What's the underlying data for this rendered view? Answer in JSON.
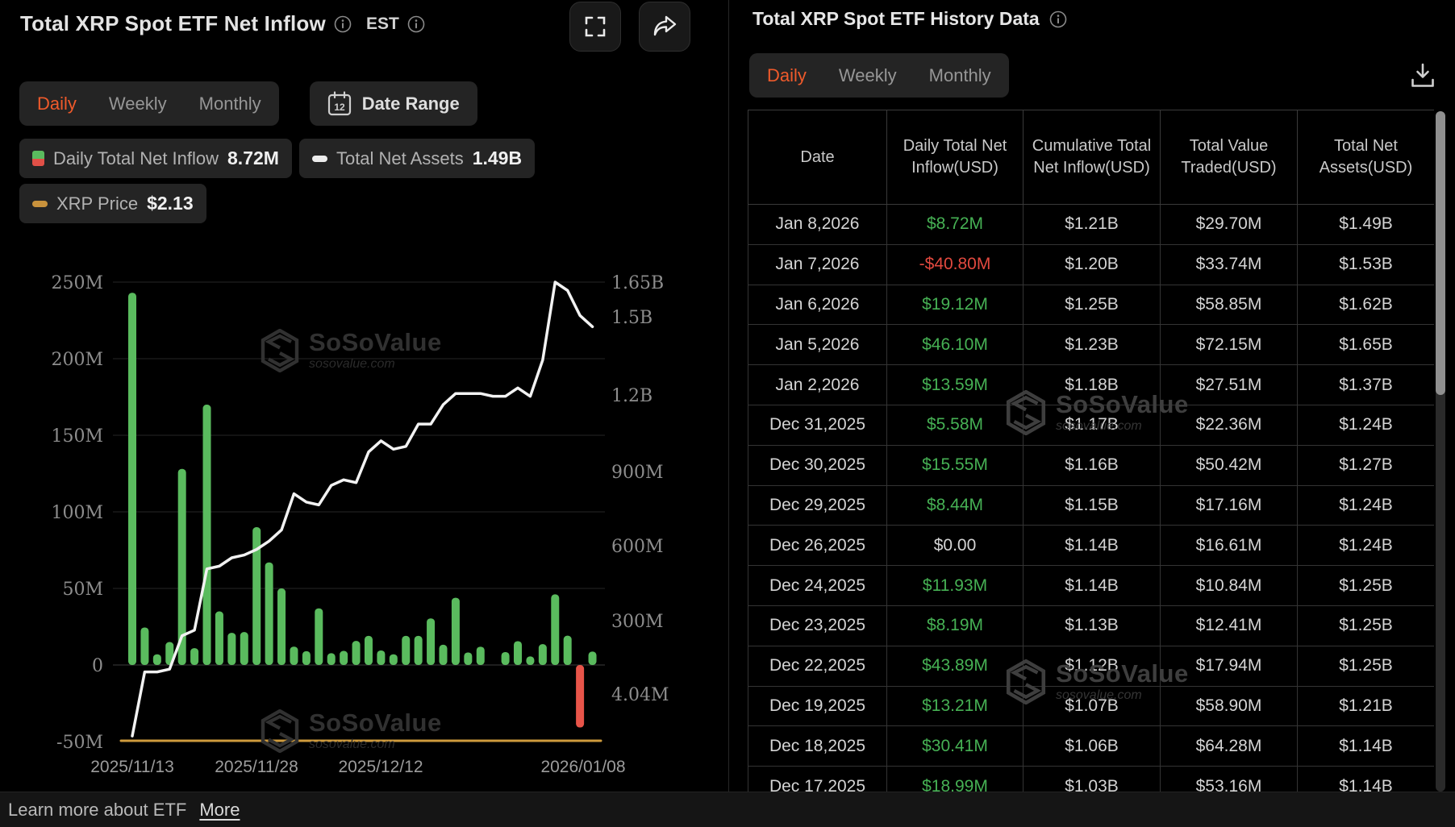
{
  "left_panel": {
    "title": "Total XRP Spot ETF Net Inflow",
    "timezone": "EST",
    "tabs": {
      "daily": "Daily",
      "weekly": "Weekly",
      "monthly": "Monthly",
      "active": "Daily"
    },
    "date_range_label": "Date Range",
    "legend": [
      {
        "label": "Daily Total Net Inflow",
        "value": "8.72M"
      },
      {
        "label": "Total Net Assets",
        "value": "1.49B"
      },
      {
        "label": "XRP Price",
        "value": "$2.13"
      }
    ],
    "footer": {
      "text": "Learn more about ETF",
      "link": "More"
    }
  },
  "right_panel": {
    "title": "Total XRP Spot ETF History Data",
    "tabs": {
      "daily": "Daily",
      "weekly": "Weekly",
      "monthly": "Monthly",
      "active": "Daily"
    },
    "table": {
      "columns": [
        "Date",
        "Daily Total Net Inflow(USD)",
        "Cumulative Total Net Inflow(USD)",
        "Total Value Traded(USD)",
        "Total Net Assets(USD)"
      ],
      "rows": [
        [
          "Jan 8,2026",
          "$8.72M",
          "$1.21B",
          "$29.70M",
          "$1.49B"
        ],
        [
          "Jan 7,2026",
          "-$40.80M",
          "$1.20B",
          "$33.74M",
          "$1.53B"
        ],
        [
          "Jan 6,2026",
          "$19.12M",
          "$1.25B",
          "$58.85M",
          "$1.62B"
        ],
        [
          "Jan 5,2026",
          "$46.10M",
          "$1.23B",
          "$72.15M",
          "$1.65B"
        ],
        [
          "Jan 2,2026",
          "$13.59M",
          "$1.18B",
          "$27.51M",
          "$1.37B"
        ],
        [
          "Dec 31,2025",
          "$5.58M",
          "$1.17B",
          "$22.36M",
          "$1.24B"
        ],
        [
          "Dec 30,2025",
          "$15.55M",
          "$1.16B",
          "$50.42M",
          "$1.27B"
        ],
        [
          "Dec 29,2025",
          "$8.44M",
          "$1.15B",
          "$17.16M",
          "$1.24B"
        ],
        [
          "Dec 26,2025",
          "$0.00",
          "$1.14B",
          "$16.61M",
          "$1.24B"
        ],
        [
          "Dec 24,2025",
          "$11.93M",
          "$1.14B",
          "$10.84M",
          "$1.25B"
        ],
        [
          "Dec 23,2025",
          "$8.19M",
          "$1.13B",
          "$12.41M",
          "$1.25B"
        ],
        [
          "Dec 22,2025",
          "$43.89M",
          "$1.12B",
          "$17.94M",
          "$1.25B"
        ],
        [
          "Dec 19,2025",
          "$13.21M",
          "$1.07B",
          "$58.90M",
          "$1.21B"
        ],
        [
          "Dec 18,2025",
          "$30.41M",
          "$1.06B",
          "$64.28M",
          "$1.14B"
        ],
        [
          "Dec 17,2025",
          "$18.99M",
          "$1.03B",
          "$53.16M",
          "$1.14B"
        ]
      ]
    }
  },
  "watermark": {
    "name": "SoSoValue",
    "domain": "sosovalue.com"
  },
  "chart_data": {
    "type": "bar+line",
    "title": "Total XRP Spot ETF Net Inflow",
    "x": [
      "2025/11/13",
      "2025/11/14",
      "2025/11/17",
      "2025/11/18",
      "2025/11/19",
      "2025/11/20",
      "2025/11/21",
      "2025/11/24",
      "2025/11/25",
      "2025/11/26",
      "2025/11/28",
      "2025/12/01",
      "2025/12/02",
      "2025/12/03",
      "2025/12/04",
      "2025/12/05",
      "2025/12/08",
      "2025/12/09",
      "2025/12/10",
      "2025/12/11",
      "2025/12/12",
      "2025/12/15",
      "2025/12/16",
      "2025/12/17",
      "2025/12/18",
      "2025/12/19",
      "2025/12/22",
      "2025/12/23",
      "2025/12/24",
      "2025/12/26",
      "2025/12/29",
      "2025/12/30",
      "2025/12/31",
      "2026/01/02",
      "2026/01/05",
      "2026/01/06",
      "2026/01/07",
      "2026/01/08"
    ],
    "series": [
      {
        "name": "Daily Total Net Inflow",
        "type": "bar",
        "unit": "USD M",
        "values": [
          243,
          24.5,
          7,
          15,
          128,
          11,
          170,
          35,
          21,
          21.5,
          90,
          67,
          50,
          12,
          9,
          37,
          7.7,
          9.2,
          15.7,
          19,
          9.5,
          7,
          19,
          18.99,
          30.41,
          13.21,
          43.89,
          8.19,
          11.93,
          0,
          8.44,
          15.55,
          5.58,
          13.59,
          46.1,
          19.12,
          -40.8,
          8.72
        ]
      },
      {
        "name": "Total Net Assets",
        "type": "line",
        "unit": "USD B",
        "values": [
          0.02,
          0.25,
          0.25,
          0.26,
          0.38,
          0.4,
          0.62,
          0.63,
          0.66,
          0.67,
          0.69,
          0.72,
          0.76,
          0.89,
          0.86,
          0.85,
          0.92,
          0.94,
          0.93,
          1.04,
          1.08,
          1.05,
          1.06,
          1.14,
          1.14,
          1.21,
          1.25,
          1.25,
          1.25,
          1.24,
          1.24,
          1.27,
          1.24,
          1.37,
          1.65,
          1.62,
          1.53,
          1.49
        ]
      },
      {
        "name": "XRP Price",
        "type": "line-flat",
        "unit": "USD",
        "value": 2.13
      }
    ],
    "left_axis_ticks": [
      "250M",
      "200M",
      "150M",
      "100M",
      "50M",
      "0",
      "-50M"
    ],
    "right_axis_ticks": [
      "1.65B",
      "1.5B",
      "1.2B",
      "900M",
      "600M",
      "300M",
      "4.04M"
    ],
    "x_tick_labels": [
      "2025/11/13",
      "2025/11/28",
      "2025/12/12",
      "2026/01/08"
    ],
    "left_axis_range": [
      -50000000,
      250000000
    ],
    "right_axis_range": [
      4040000,
      1650000000
    ],
    "grid": true,
    "legend_position": "top",
    "colors": {
      "bar_positive": "#5abb5e",
      "bar_negative": "#e85449",
      "assets_line": "#f2f2f2",
      "price_line": "#cf9b3d",
      "accent": "#ef5a2b"
    }
  }
}
